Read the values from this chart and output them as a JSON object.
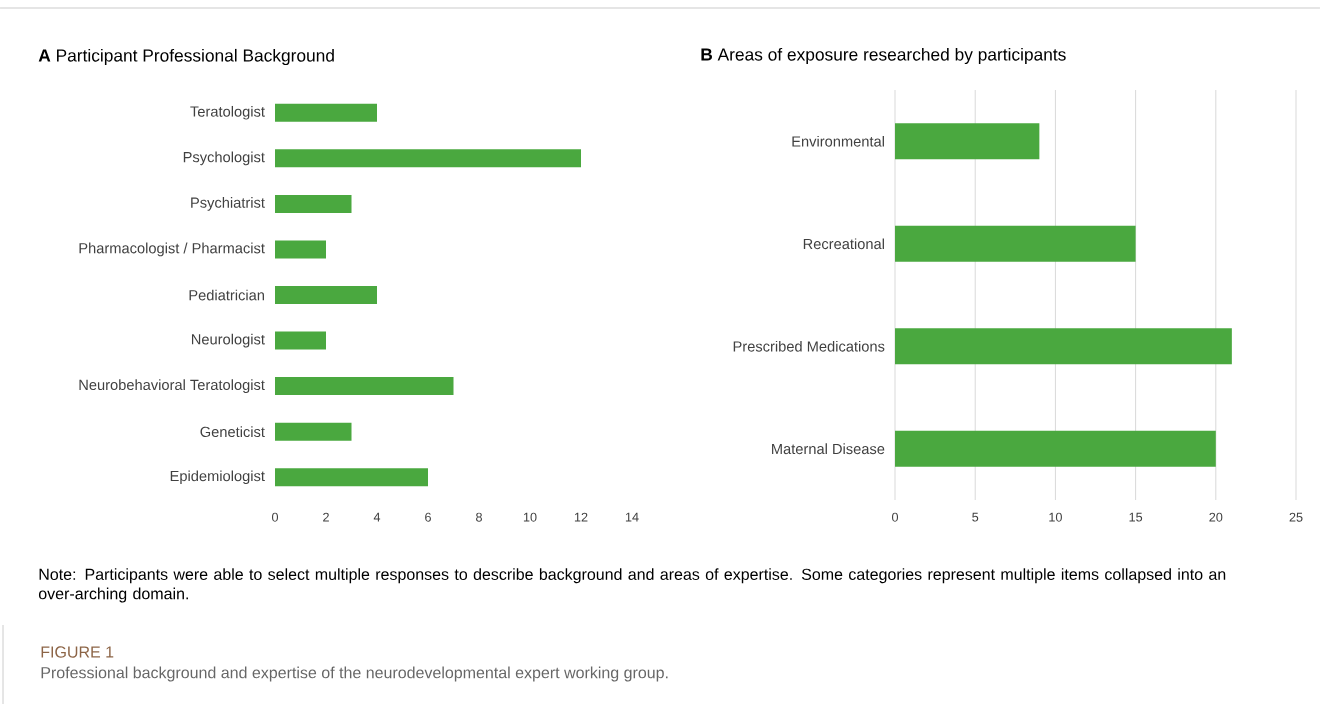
{
  "chart_data": [
    {
      "type": "bar",
      "orientation": "horizontal",
      "title": "**A** Participant Professional Background",
      "categories": [
        "Teratologist",
        "Psychologist",
        "Psychiatrist",
        "Pharmacologist / Pharmacist",
        "Pediatrician",
        "Neurologist",
        "Neurobehavioral Teratologist",
        "Geneticist",
        "Epidemiologist"
      ],
      "values": [
        4,
        12,
        3,
        2,
        4,
        2,
        7,
        3,
        6
      ],
      "color": "#4aa83f",
      "xlim": [
        0,
        14
      ],
      "xticks": [
        0,
        2,
        4,
        6,
        8,
        10,
        12,
        14
      ],
      "annotations": [
        "Note: Participants were able to select multiple responses to describe background and areas of expertise. Some categories represent multiple items collapsed into an over-arching domain.",
        "FIGURE 1",
        "Professional background and expertise of the neurodevelopmental expert working group."
      ]
    },
    {
      "type": "bar",
      "orientation": "horizontal",
      "title": "**B** Areas of exposure researched by participants",
      "categories": [
        "Environmental",
        "Recreational",
        "Prescribed Medications",
        "Maternal Disease"
      ],
      "values": [
        9,
        15,
        21,
        20
      ],
      "color": "#4aa83f",
      "xlim": [
        0,
        25
      ],
      "xticks": [
        0,
        5,
        10,
        15,
        20,
        25
      ],
      "grid": "x"
    }
  ]
}
